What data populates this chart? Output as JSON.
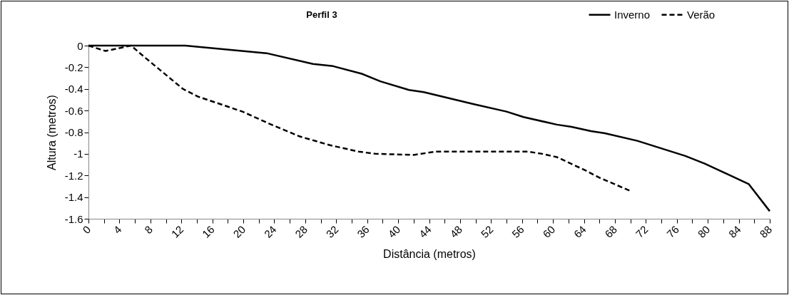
{
  "chart_data": {
    "type": "line",
    "title": "Perfil 3",
    "xlabel": "Distância (metros)",
    "ylabel": "Altura (metros)",
    "xlim": [
      0,
      88
    ],
    "ylim": [
      -1.6,
      0
    ],
    "xticks": [
      0,
      {
        "value": 2,
        "label": null
      },
      4,
      {
        "value": 6,
        "label": null
      },
      8,
      {
        "value": 10,
        "label": null
      },
      12,
      {
        "value": 14,
        "label": null
      },
      16,
      {
        "value": 18,
        "label": null
      },
      20,
      {
        "value": 22,
        "label": null
      },
      24,
      {
        "value": 26,
        "label": null
      },
      28,
      {
        "value": 30,
        "label": null
      },
      32,
      {
        "value": 34,
        "label": null
      },
      36,
      {
        "value": 38,
        "label": null
      },
      40,
      {
        "value": 42,
        "label": null
      },
      44,
      {
        "value": 46,
        "label": null
      },
      48,
      {
        "value": 50,
        "label": null
      },
      52,
      {
        "value": 54,
        "label": null
      },
      56,
      {
        "value": 58,
        "label": null
      },
      60,
      {
        "value": 62,
        "label": null
      },
      64,
      {
        "value": 66,
        "label": null
      },
      68,
      {
        "value": 70,
        "label": null
      },
      72,
      {
        "value": 74,
        "label": null
      },
      76,
      {
        "value": 78,
        "label": null
      },
      80,
      {
        "value": 82,
        "label": null
      },
      84,
      {
        "value": 86,
        "label": null
      },
      88
    ],
    "yticks": [
      0,
      -0.2,
      -0.4,
      -0.6,
      -0.8,
      -1,
      -1.2,
      -1.4,
      -1.6
    ],
    "grid": false,
    "legend": "top right",
    "marker": "none",
    "series": [
      {
        "name": "Inverno",
        "color": "#000000",
        "line_style": "solid",
        "x": [
          0,
          12.5,
          23,
          29,
          31.6,
          35.3,
          37.7,
          41.4,
          43.3,
          49.7,
          54,
          56.2,
          60.5,
          62.4,
          64.9,
          66.7,
          70.9,
          77.1,
          79.6,
          85.3,
          88
        ],
        "values": [
          0,
          0,
          -0.07,
          -0.17,
          -0.19,
          -0.26,
          -0.33,
          -0.41,
          -0.43,
          -0.54,
          -0.61,
          -0.66,
          -0.73,
          -0.75,
          -0.79,
          -0.81,
          -0.88,
          -1.02,
          -1.09,
          -1.28,
          -1.53
        ]
      },
      {
        "name": "Verão",
        "color": "#000000",
        "line_style": "dashed",
        "x": [
          0,
          2.2,
          5.5,
          7.3,
          12.2,
          14.1,
          19.9,
          23.3,
          27.3,
          31.2,
          34.9,
          37.1,
          42,
          44.8,
          56.8,
          58.6,
          60.5,
          64.1,
          66,
          69.9
        ],
        "values": [
          0,
          -0.05,
          0,
          -0.11,
          -0.4,
          -0.47,
          -0.61,
          -0.72,
          -0.84,
          -0.92,
          -0.98,
          -1,
          -1.01,
          -0.98,
          -0.98,
          -1,
          -1.03,
          -1.15,
          -1.22,
          -1.34
        ]
      }
    ]
  }
}
